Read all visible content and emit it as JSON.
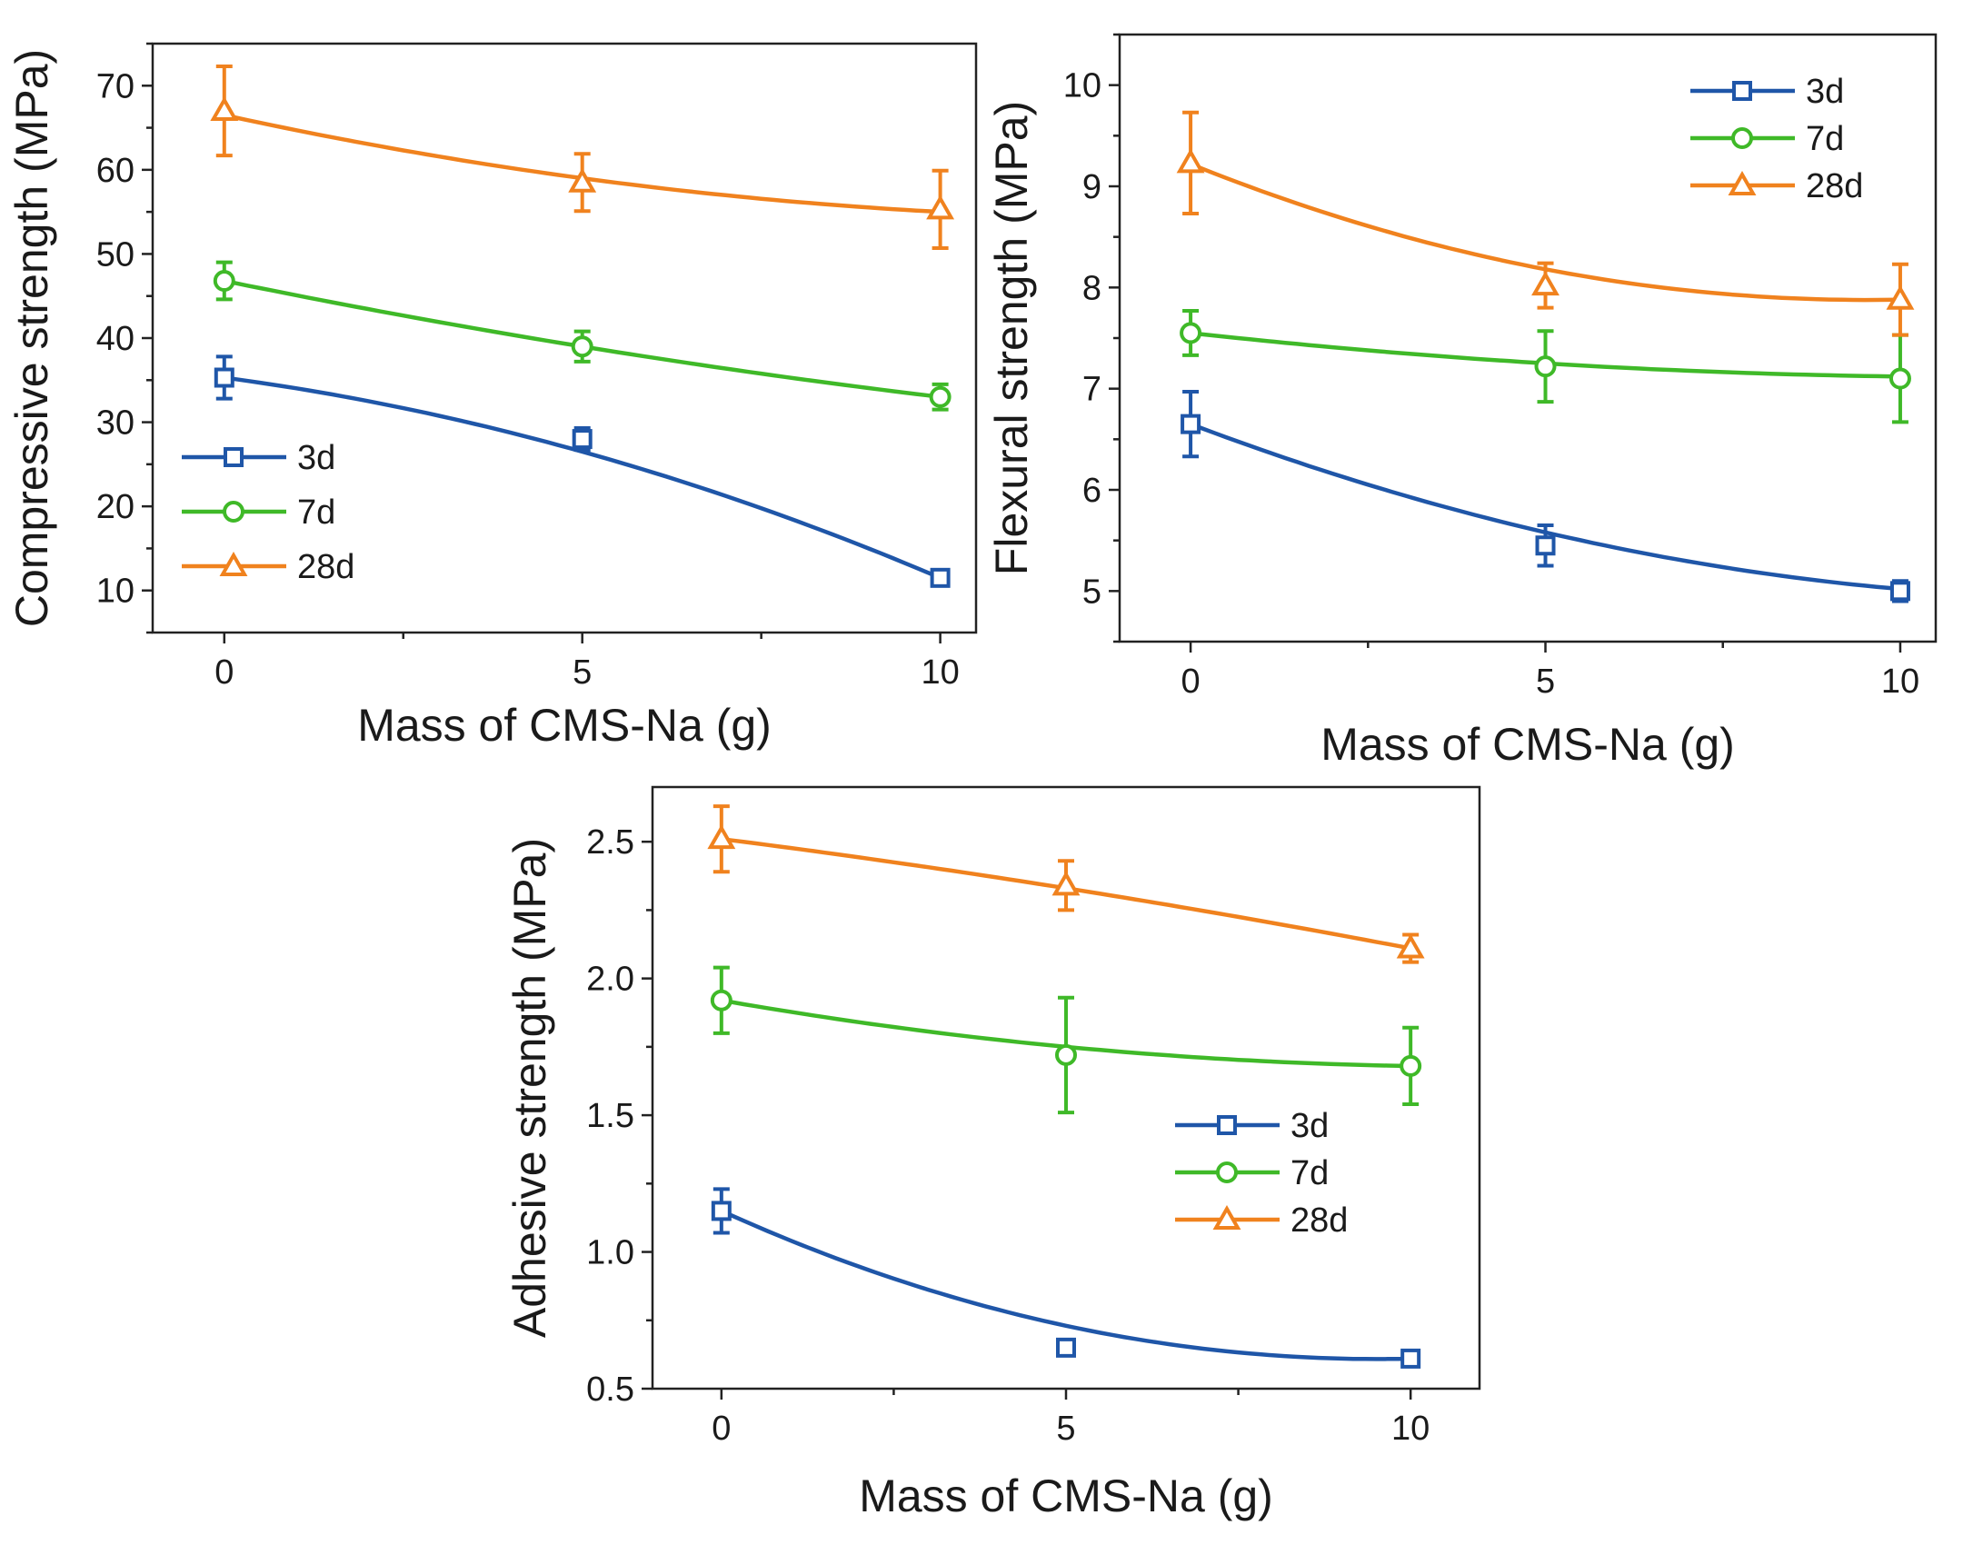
{
  "chart_data": [
    {
      "type": "line",
      "xlabel": "Mass of CMS-Na (g)",
      "ylabel": "Compressive strength (MPa)",
      "xlim": [
        -1,
        10.5
      ],
      "ylim": [
        5,
        75
      ],
      "x_ticks": [
        0,
        5,
        10
      ],
      "y_ticks": [
        10,
        20,
        30,
        40,
        50,
        60,
        70
      ],
      "legend_position": "bottom-left",
      "series": [
        {
          "name": "3d",
          "color": "#1f56a8",
          "marker": "square",
          "x": [
            0,
            5,
            10
          ],
          "values": [
            35.3,
            28.0,
            11.5
          ],
          "errors": [
            2.5,
            1.3,
            0.8
          ],
          "fit": [
            35.3,
            26.5,
            11.5
          ]
        },
        {
          "name": "7d",
          "color": "#3fb928",
          "marker": "circle",
          "x": [
            0,
            5,
            10
          ],
          "values": [
            46.8,
            39.0,
            33.0
          ],
          "errors": [
            2.2,
            1.8,
            1.5
          ],
          "fit": [
            46.8,
            39.0,
            33.0
          ]
        },
        {
          "name": "28d",
          "color": "#f0821e",
          "marker": "triangle",
          "x": [
            0,
            5,
            10
          ],
          "values": [
            67.0,
            58.5,
            55.3
          ],
          "errors": [
            5.3,
            3.4,
            4.6
          ],
          "fit": [
            66.5,
            59.0,
            55.0
          ]
        }
      ]
    },
    {
      "type": "line",
      "xlabel": "Mass of CMS-Na (g)",
      "ylabel": "Flexural strength (MPa)",
      "xlim": [
        -1,
        10.5
      ],
      "ylim": [
        4.5,
        10.5
      ],
      "x_ticks": [
        0,
        5,
        10
      ],
      "y_ticks": [
        5,
        6,
        7,
        8,
        9,
        10
      ],
      "legend_position": "top-right",
      "series": [
        {
          "name": "3d",
          "color": "#1f56a8",
          "marker": "square",
          "x": [
            0,
            5,
            10
          ],
          "values": [
            6.65,
            5.45,
            5.0
          ],
          "errors": [
            0.32,
            0.2,
            0.1
          ],
          "fit": [
            6.65,
            5.58,
            5.02
          ]
        },
        {
          "name": "7d",
          "color": "#3fb928",
          "marker": "circle",
          "x": [
            0,
            5,
            10
          ],
          "values": [
            7.55,
            7.22,
            7.1
          ],
          "errors": [
            0.22,
            0.35,
            0.43
          ],
          "fit": [
            7.55,
            7.25,
            7.12
          ]
        },
        {
          "name": "28d",
          "color": "#f0821e",
          "marker": "triangle",
          "x": [
            0,
            5,
            10
          ],
          "values": [
            9.23,
            8.02,
            7.88
          ],
          "errors": [
            0.5,
            0.22,
            0.35
          ],
          "fit": [
            9.22,
            8.18,
            7.88
          ]
        }
      ]
    },
    {
      "type": "line",
      "xlabel": "Mass of CMS-Na (g)",
      "ylabel": "Adhesive strength (MPa)",
      "xlim": [
        -1,
        11
      ],
      "ylim": [
        0.5,
        2.7
      ],
      "x_ticks": [
        0,
        5,
        10
      ],
      "y_ticks": [
        0.5,
        1.0,
        1.5,
        2.0,
        2.5
      ],
      "y_tick_labels": [
        "0.5",
        "1.0",
        "1.5",
        "2.0",
        "2.5"
      ],
      "legend_position": "center-right",
      "series": [
        {
          "name": "3d",
          "color": "#1f56a8",
          "marker": "square",
          "x": [
            0,
            5,
            10
          ],
          "values": [
            1.15,
            0.65,
            0.61
          ],
          "errors": [
            0.08,
            0.0,
            0.0
          ],
          "fit": [
            1.15,
            0.73,
            0.61
          ]
        },
        {
          "name": "7d",
          "color": "#3fb928",
          "marker": "circle",
          "x": [
            0,
            5,
            10
          ],
          "values": [
            1.92,
            1.72,
            1.68
          ],
          "errors": [
            0.12,
            0.21,
            0.14
          ],
          "fit": [
            1.92,
            1.75,
            1.68
          ]
        },
        {
          "name": "28d",
          "color": "#f0821e",
          "marker": "triangle",
          "x": [
            0,
            5,
            10
          ],
          "values": [
            2.51,
            2.34,
            2.11
          ],
          "errors": [
            0.12,
            0.09,
            0.05
          ],
          "fit": [
            2.51,
            2.33,
            2.11
          ]
        }
      ]
    }
  ]
}
